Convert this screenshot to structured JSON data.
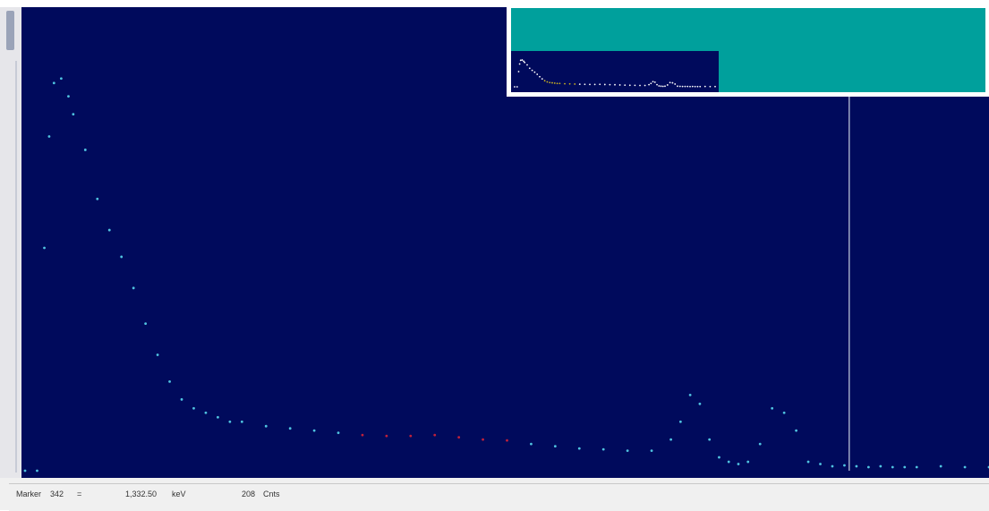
{
  "status_bar": {
    "marker_label": "Marker",
    "marker_channel": "342",
    "equals": "=",
    "energy": "1,332.50",
    "energy_unit": "keV",
    "counts": "208",
    "counts_unit": "Cnts"
  },
  "colors": {
    "plot_background": "#000a5c",
    "points": "#4fc3e0",
    "roi_points": "#c0203a",
    "marker_line": "#c8d0e0",
    "overview_background": "#00a09c",
    "overview_highlight": "#c8b020"
  },
  "chart_data": {
    "type": "scatter",
    "title": "",
    "xlabel": "",
    "ylabel": "",
    "x_unit": "channel",
    "xlim": [
      0,
      400
    ],
    "ylim": [
      0,
      1000
    ],
    "marker_channel": 342,
    "roi": {
      "start": 138,
      "end": 205
    },
    "series": [
      {
        "x": [
          0,
          5,
          8,
          10,
          12,
          15,
          18,
          20,
          25,
          30,
          35,
          40,
          45,
          50,
          55,
          60,
          65,
          70,
          75,
          80,
          85,
          90,
          100,
          110,
          120,
          130,
          140,
          150,
          160,
          170,
          180,
          190,
          200,
          210,
          220,
          230,
          240,
          250,
          260,
          268,
          272,
          276,
          280,
          284,
          288,
          292,
          296,
          300,
          305,
          310,
          315,
          320,
          325,
          330,
          335,
          340,
          345,
          350,
          355,
          360,
          365,
          370,
          380,
          390,
          400
        ],
        "y": [
          0,
          0,
          500,
          750,
          870,
          880,
          840,
          800,
          720,
          610,
          540,
          480,
          410,
          330,
          260,
          200,
          160,
          140,
          130,
          120,
          110,
          110,
          100,
          95,
          90,
          85,
          80,
          78,
          78,
          80,
          75,
          70,
          68,
          60,
          55,
          50,
          48,
          45,
          45,
          70,
          110,
          170,
          150,
          70,
          30,
          20,
          15,
          20,
          60,
          140,
          130,
          90,
          20,
          15,
          10,
          12,
          10,
          8,
          10,
          8,
          8,
          8,
          10,
          8,
          8
        ]
      }
    ]
  },
  "overview": {
    "chart_data": {
      "type": "scatter",
      "xlim": [
        0,
        400
      ],
      "ylim": [
        0,
        1000
      ],
      "highlight_range": [
        60,
        120
      ]
    }
  }
}
